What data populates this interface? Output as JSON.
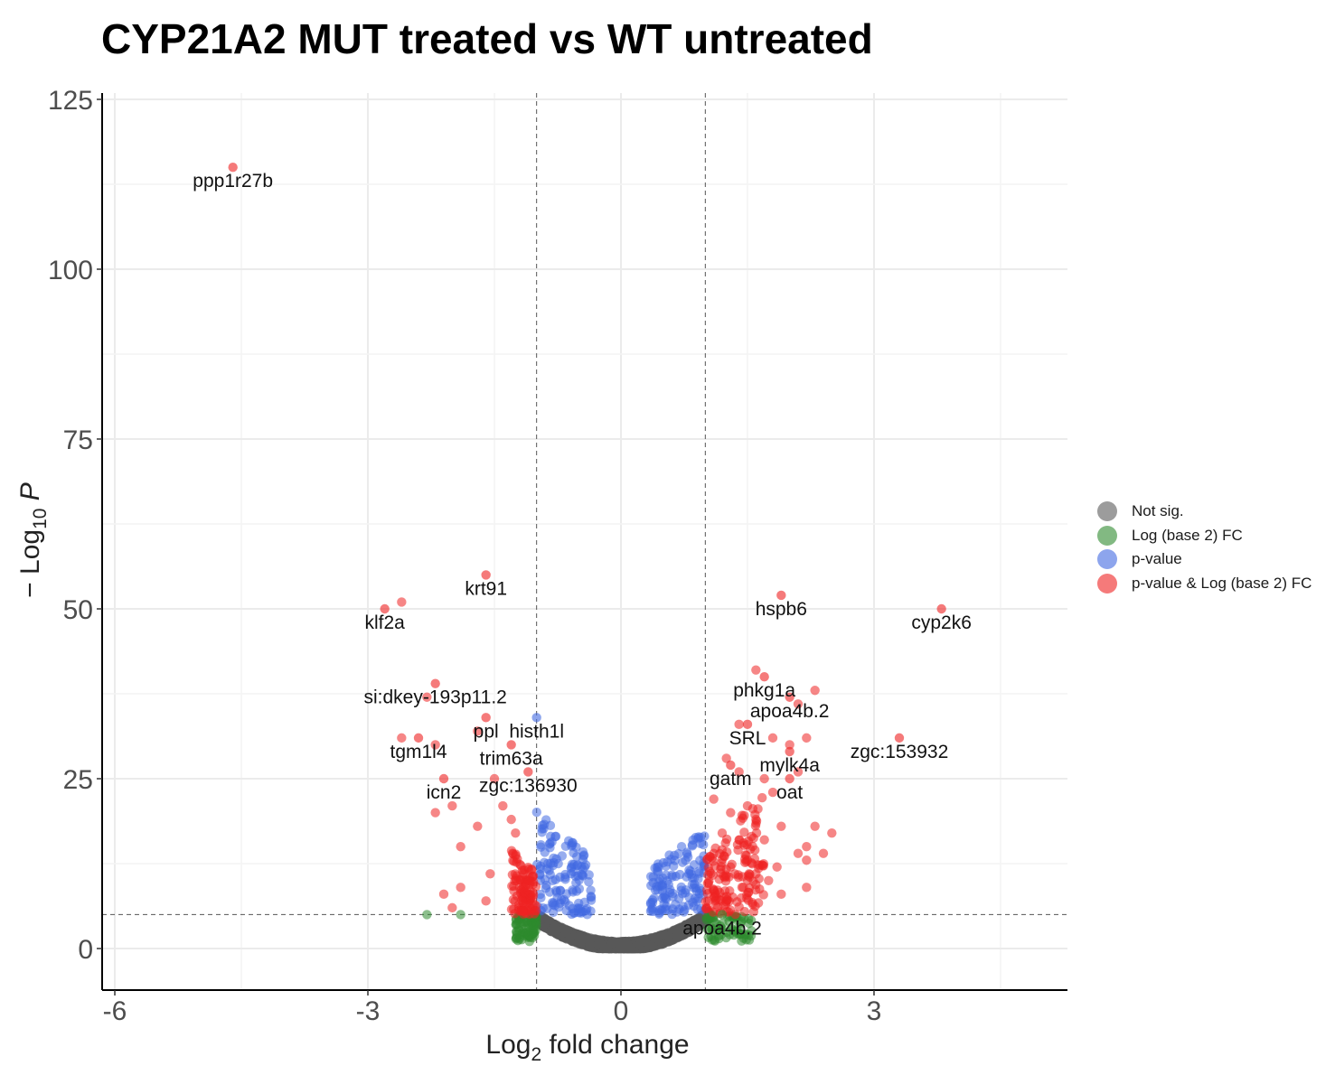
{
  "chart_data": {
    "type": "scatter",
    "title": "CYP21A2 MUT treated vs WT untreated",
    "xlabel_main": "Log",
    "xlabel_sub": "2",
    "xlabel_rest": " fold change",
    "ylabel_pre": "− Log",
    "ylabel_sub": "10",
    "ylabel_var": "P",
    "xlim": [
      -6.3,
      5.2
    ],
    "ylim": [
      -6,
      126
    ],
    "x_ticks": [
      -6,
      -3,
      0,
      3
    ],
    "x_tick_labels": [
      "-6",
      "-3",
      "0",
      "3"
    ],
    "y_ticks": [
      0,
      25,
      50,
      75,
      100,
      125
    ],
    "y_tick_labels": [
      "0",
      "25",
      "50",
      "75",
      "100",
      "125"
    ],
    "fc_cutoff": 1,
    "p_cutoff_log10": 5,
    "grid": true,
    "legend_position": "right",
    "legend": [
      {
        "name": "Not sig.",
        "color": "#5a5a5a"
      },
      {
        "name": "Log (base 2) FC",
        "color": "#2e8b2e"
      },
      {
        "name": "p-value",
        "color": "#4169e1"
      },
      {
        "name": "p-value & Log (base 2) FC",
        "color": "#ee2222"
      }
    ],
    "labeled_points": [
      {
        "label": "ppp1r27b",
        "x": -4.6,
        "y": 115
      },
      {
        "label": "krt91",
        "x": -1.6,
        "y": 55
      },
      {
        "label": "klf2a",
        "x": -2.8,
        "y": 50
      },
      {
        "label": "si:dkey-193p11.2",
        "x": -2.2,
        "y": 39
      },
      {
        "label": "ppl",
        "x": -1.6,
        "y": 34
      },
      {
        "label": "histh1l",
        "x": -1.0,
        "y": 34
      },
      {
        "label": "tgm1l4",
        "x": -2.4,
        "y": 31
      },
      {
        "label": "trim63a",
        "x": -1.3,
        "y": 30
      },
      {
        "label": "icn2",
        "x": -2.1,
        "y": 25
      },
      {
        "label": "zgc:136930",
        "x": -1.1,
        "y": 26
      },
      {
        "label": "hspb6",
        "x": 1.9,
        "y": 52
      },
      {
        "label": "cyp2k6",
        "x": 3.8,
        "y": 50
      },
      {
        "label": "phkg1a",
        "x": 1.7,
        "y": 40
      },
      {
        "label": "apoa4b.2",
        "x": 2.0,
        "y": 37
      },
      {
        "label": "SRL",
        "x": 1.5,
        "y": 33
      },
      {
        "label": "mylk4a",
        "x": 2.0,
        "y": 29
      },
      {
        "label": "zgc:153932",
        "x": 3.3,
        "y": 31
      },
      {
        "label": "gatm",
        "x": 1.3,
        "y": 27
      },
      {
        "label": "oat",
        "x": 2.0,
        "y": 25
      },
      {
        "label": "apoa4b.2",
        "x": 1.2,
        "y": 5
      }
    ],
    "extra_points": [
      {
        "x": -2.3,
        "y": 5
      },
      {
        "x": -2.0,
        "y": 6
      },
      {
        "x": -1.9,
        "y": 5
      },
      {
        "x": -2.1,
        "y": 8
      },
      {
        "x": -1.9,
        "y": 9
      },
      {
        "x": -1.6,
        "y": 7
      },
      {
        "x": -2.2,
        "y": 20
      },
      {
        "x": -2.0,
        "y": 21
      },
      {
        "x": -1.9,
        "y": 15
      },
      {
        "x": -1.7,
        "y": 18
      },
      {
        "x": -1.55,
        "y": 11
      },
      {
        "x": -1.4,
        "y": 21
      },
      {
        "x": -1.3,
        "y": 19
      },
      {
        "x": -1.25,
        "y": 17
      },
      {
        "x": -1.5,
        "y": 25
      },
      {
        "x": -1.7,
        "y": 32
      },
      {
        "x": -2.2,
        "y": 30
      },
      {
        "x": -2.6,
        "y": 31
      },
      {
        "x": -2.3,
        "y": 37
      },
      {
        "x": -2.6,
        "y": 51
      },
      {
        "x": 2.3,
        "y": 18
      },
      {
        "x": 2.5,
        "y": 17
      },
      {
        "x": 2.2,
        "y": 15
      },
      {
        "x": 2.4,
        "y": 14
      },
      {
        "x": 2.1,
        "y": 14
      },
      {
        "x": 2.2,
        "y": 13
      },
      {
        "x": 2.2,
        "y": 9
      },
      {
        "x": 1.9,
        "y": 8
      },
      {
        "x": 2.1,
        "y": 26
      },
      {
        "x": 2.0,
        "y": 30
      },
      {
        "x": 2.2,
        "y": 31
      },
      {
        "x": 2.1,
        "y": 36
      },
      {
        "x": 2.3,
        "y": 38
      },
      {
        "x": 1.6,
        "y": 41
      },
      {
        "x": 1.4,
        "y": 33
      },
      {
        "x": 1.8,
        "y": 31
      },
      {
        "x": 1.25,
        "y": 28
      },
      {
        "x": 1.4,
        "y": 26
      },
      {
        "x": 1.7,
        "y": 25
      },
      {
        "x": 1.8,
        "y": 23
      },
      {
        "x": 1.1,
        "y": 22
      },
      {
        "x": 1.5,
        "y": 21
      },
      {
        "x": 1.6,
        "y": 19
      },
      {
        "x": 1.3,
        "y": 20
      },
      {
        "x": 1.2,
        "y": 17
      },
      {
        "x": 1.4,
        "y": 16
      },
      {
        "x": 1.7,
        "y": 16
      },
      {
        "x": 1.9,
        "y": 18
      },
      {
        "x": 1.85,
        "y": 12
      },
      {
        "x": 1.6,
        "y": 11
      },
      {
        "x": 1.5,
        "y": 13
      },
      {
        "x": 1.75,
        "y": 10
      },
      {
        "x": 1.45,
        "y": 9
      },
      {
        "x": 1.3,
        "y": 12
      },
      {
        "x": 1.1,
        "y": 14
      }
    ]
  }
}
